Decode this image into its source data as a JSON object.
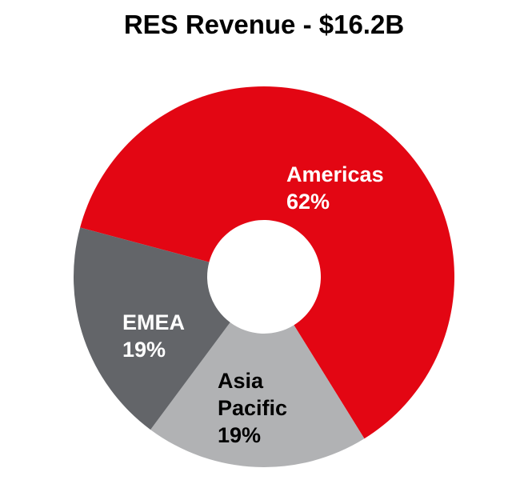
{
  "chart_data": {
    "type": "pie",
    "variant": "donut",
    "title": "RES Revenue - $16.2B",
    "categories": [
      "Americas",
      "Asia Pacific",
      "EMEA"
    ],
    "values": [
      62,
      19,
      19
    ],
    "unit": "%",
    "colors": [
      "#e30613",
      "#b1b2b4",
      "#636569"
    ],
    "label_colors": [
      "#ffffff",
      "#000000",
      "#ffffff"
    ],
    "labels": [
      {
        "lines": [
          "Americas",
          "62%"
        ]
      },
      {
        "lines": [
          "Asia",
          "Pacific",
          "19%"
        ]
      },
      {
        "lines": [
          "EMEA",
          "19%"
        ]
      }
    ],
    "start_angle_deg": -75,
    "legend": "none"
  }
}
